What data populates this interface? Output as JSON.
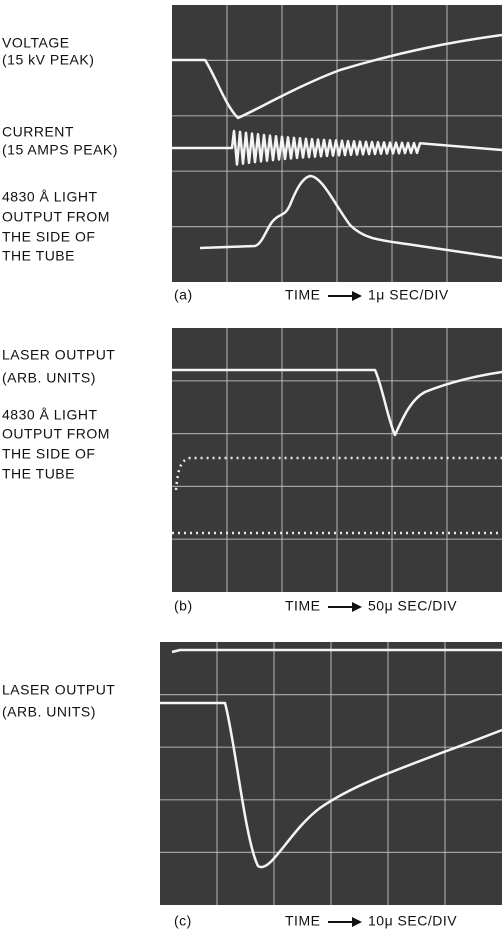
{
  "panels": [
    {
      "label": "(a)",
      "time_label": "TIME",
      "scale": "1μ SEC/DIV",
      "labels": [
        "VOLTAGE",
        "(15 kV PEAK)",
        "CURRENT",
        "(15 AMPS PEAK)",
        "4830 Å LIGHT",
        "OUTPUT FROM",
        "THE SIDE OF",
        "THE TUBE"
      ]
    },
    {
      "label": "(b)",
      "time_label": "TIME",
      "scale": "50μ SEC/DIV",
      "labels": [
        "LASER OUTPUT",
        "(ARB. UNITS)",
        "4830 Å LIGHT",
        "OUTPUT FROM",
        "THE SIDE OF",
        "THE TUBE"
      ]
    },
    {
      "label": "(c)",
      "time_label": "TIME",
      "scale": "10μ SEC/DIV",
      "labels": [
        "LASER OUTPUT",
        "(ARB. UNITS)"
      ]
    }
  ]
}
